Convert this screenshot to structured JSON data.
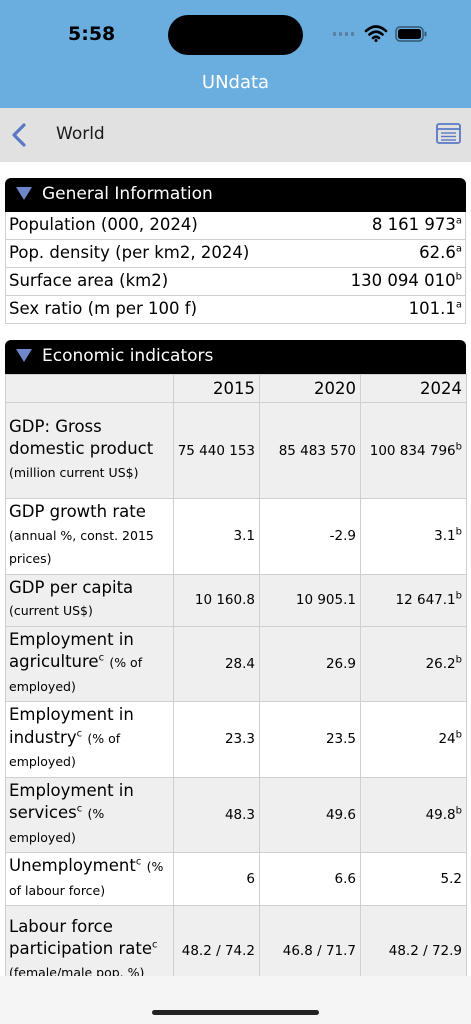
{
  "status_bar": {
    "time": "5:58"
  },
  "app": {
    "title": "UNdata"
  },
  "nav": {
    "title": "World"
  },
  "icons": {
    "back": "chevron-left-icon",
    "list": "list-icon",
    "wifi": "wifi-icon",
    "battery": "battery-icon",
    "cellular": "cellular-signal-icon"
  },
  "colors": {
    "header": "#6aaedf",
    "section_header": "#000000",
    "triangle": "#6f86c9",
    "nav": "#e1e1e1"
  },
  "general": {
    "title": "General Information",
    "rows": [
      {
        "label": "Population (000, 2024)",
        "value": "8 161 973",
        "note": "a"
      },
      {
        "label": "Pop. density (per km2, 2024)",
        "value": "62.6",
        "note": "a"
      },
      {
        "label": "Surface area (km2)",
        "value": "130 094 010",
        "note": "b"
      },
      {
        "label": "Sex ratio (m per 100 f)",
        "value": "101.1",
        "note": "a"
      }
    ]
  },
  "economic": {
    "title": "Economic indicators",
    "years": [
      "2015",
      "2020",
      "2024"
    ],
    "rows": [
      {
        "main": "GDP: Gross domestic product",
        "note": "",
        "unit": "(million current US$)",
        "values": [
          "75 440 153",
          "85 483 570",
          "100 834 796"
        ],
        "last_note": "b"
      },
      {
        "main": "GDP growth rate",
        "note": "",
        "unit": "(annual %, const. 2015 prices)",
        "values": [
          "3.1",
          "-2.9",
          "3.1"
        ],
        "last_note": "b"
      },
      {
        "main": "GDP per capita",
        "note": "",
        "unit": "(current US$)",
        "values": [
          "10 160.8",
          "10 905.1",
          "12 647.1"
        ],
        "last_note": "b"
      },
      {
        "main": "Employment in agriculture",
        "note": "c",
        "unit": "(% of employed)",
        "values": [
          "28.4",
          "26.9",
          "26.2"
        ],
        "last_note": "b"
      },
      {
        "main": "Employment in industry",
        "note": "c",
        "unit": "(% of employed)",
        "values": [
          "23.3",
          "23.5",
          "24"
        ],
        "last_note": "b"
      },
      {
        "main": "Employment in services",
        "note": "c",
        "unit": "(% employed)",
        "values": [
          "48.3",
          "49.6",
          "49.8"
        ],
        "last_note": "b"
      },
      {
        "main": "Unemployment",
        "note": "c",
        "unit": "(% of labour force)",
        "values": [
          "6",
          "6.6",
          "5.2"
        ],
        "last_note": ""
      },
      {
        "main": "Labour force participation rate",
        "note": "c",
        "unit": "(female/male pop. %)",
        "values": [
          "48.2 / 74.2",
          "46.8 / 71.7",
          "48.2 / 72.9"
        ],
        "last_note": ""
      }
    ]
  }
}
